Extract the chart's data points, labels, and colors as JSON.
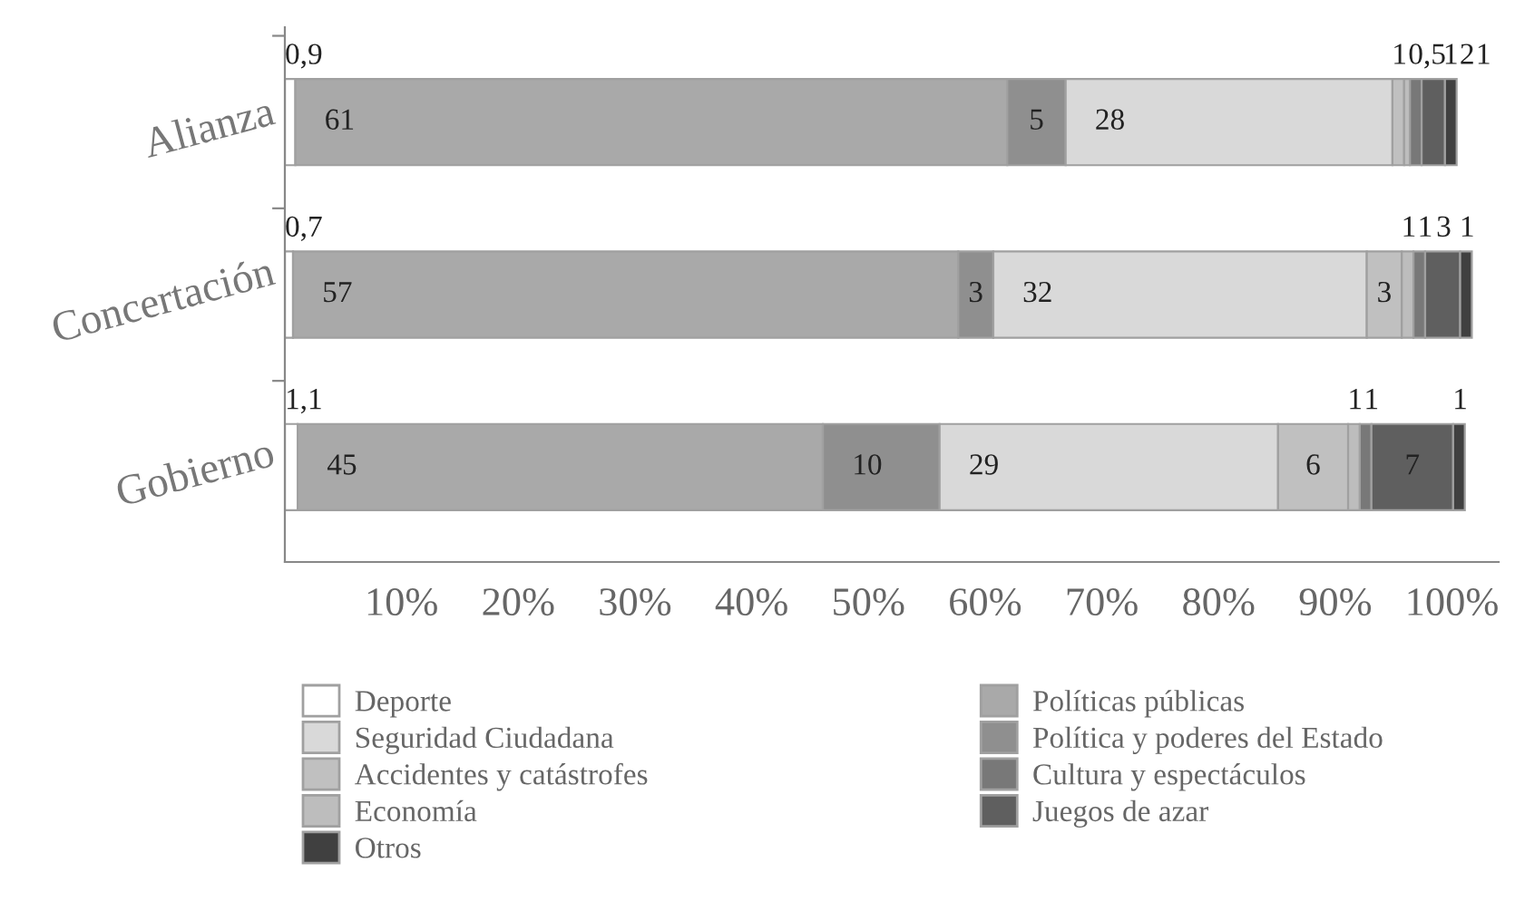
{
  "chart_data": {
    "type": "bar",
    "orientation": "horizontal",
    "stacked": true,
    "categories": [
      "Alianza",
      "Concertación",
      "Gobierno"
    ],
    "series": [
      {
        "name": "Deporte",
        "color": "#ffffff",
        "values": [
          0.9,
          0.7,
          1.1
        ],
        "value_labels": [
          "0,9",
          "0,7",
          "1,1"
        ]
      },
      {
        "name": "Políticas públicas",
        "color": "#a9a9a9",
        "values": [
          61,
          57,
          45
        ]
      },
      {
        "name": "Política y poderes del Estado",
        "color": "#8f8f8f",
        "values": [
          5,
          3,
          10
        ]
      },
      {
        "name": "Seguridad Ciudadana",
        "color": "#d9d9d9",
        "values": [
          28,
          32,
          29
        ]
      },
      {
        "name": "Accidentes y catástrofes",
        "color": "#c0c0c0",
        "values": [
          1,
          3,
          6
        ]
      },
      {
        "name": "Economía",
        "color": "#bdbdbd",
        "values": [
          0.5,
          1,
          1
        ],
        "value_labels": [
          "0,5",
          "1",
          "1"
        ]
      },
      {
        "name": "Cultura y espectáculos",
        "color": "#787878",
        "values": [
          1,
          1,
          1
        ]
      },
      {
        "name": "Juegos de azar",
        "color": "#5f5f5f",
        "values": [
          2,
          3,
          7
        ]
      },
      {
        "name": "Otros",
        "color": "#404040",
        "values": [
          1,
          1,
          1
        ]
      }
    ],
    "xlim": [
      0,
      104
    ],
    "xticks": [
      {
        "value": 10,
        "label": "10%"
      },
      {
        "value": 20,
        "label": "20%"
      },
      {
        "value": 30,
        "label": "30%"
      },
      {
        "value": 40,
        "label": "40%"
      },
      {
        "value": 50,
        "label": "50%"
      },
      {
        "value": 60,
        "label": "60%"
      },
      {
        "value": 70,
        "label": "70%"
      },
      {
        "value": 80,
        "label": "80%"
      },
      {
        "value": 90,
        "label": "90%"
      },
      {
        "value": 100,
        "label": "100%"
      }
    ],
    "data_labels": true,
    "grid": false,
    "legend": "bottom"
  }
}
